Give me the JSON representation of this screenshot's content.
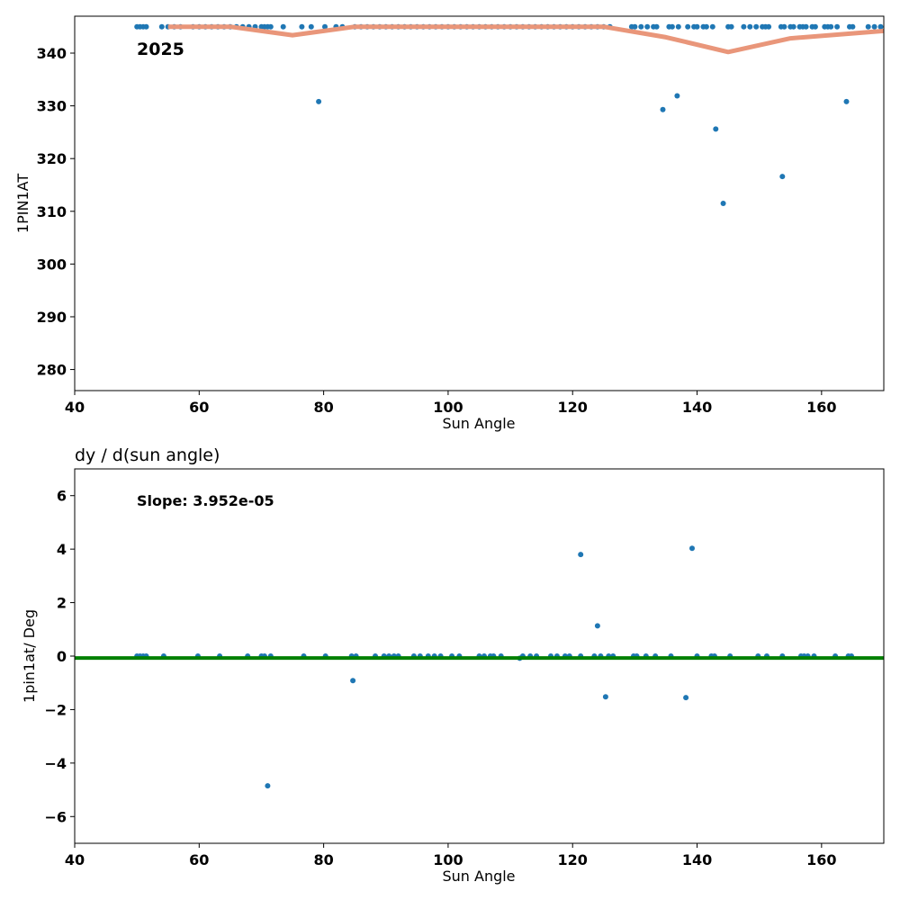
{
  "chart_data": [
    {
      "type": "scatter",
      "title": "",
      "xlabel": "Sun Angle",
      "ylabel": "1PIN1AT",
      "xlim": [
        40,
        170
      ],
      "ylim": [
        276,
        347
      ],
      "xticks": [
        40,
        60,
        80,
        100,
        120,
        140,
        160
      ],
      "yticks": [
        280,
        290,
        300,
        310,
        320,
        330,
        340
      ],
      "annotation": "2025",
      "grid": false,
      "series": [
        {
          "type": "scatter",
          "color": "#1f77b4",
          "points": [
            [
              50,
              345
            ],
            [
              50.5,
              345
            ],
            [
              51,
              345
            ],
            [
              51.5,
              345
            ],
            [
              54,
              345
            ],
            [
              55,
              345
            ],
            [
              56,
              345
            ],
            [
              57,
              345
            ],
            [
              59,
              345
            ],
            [
              60,
              345
            ],
            [
              61,
              345
            ],
            [
              62,
              345
            ],
            [
              63,
              345
            ],
            [
              64,
              345
            ],
            [
              65,
              345
            ],
            [
              66,
              345
            ],
            [
              67,
              345
            ],
            [
              68,
              345
            ],
            [
              69,
              345
            ],
            [
              70,
              345
            ],
            [
              70.5,
              345
            ],
            [
              71,
              345
            ],
            [
              71.5,
              345
            ],
            [
              73.5,
              345
            ],
            [
              76.5,
              345
            ],
            [
              78,
              345
            ],
            [
              79.2,
              330.8
            ],
            [
              80.2,
              345
            ],
            [
              82,
              345
            ],
            [
              83,
              345
            ],
            [
              85,
              345
            ],
            [
              86,
              345
            ],
            [
              87,
              345
            ],
            [
              88,
              345
            ],
            [
              89,
              345
            ],
            [
              90,
              345
            ],
            [
              91,
              345
            ],
            [
              92,
              345
            ],
            [
              93,
              345
            ],
            [
              94,
              345
            ],
            [
              95,
              345
            ],
            [
              96,
              345
            ],
            [
              97,
              345
            ],
            [
              98,
              345
            ],
            [
              99,
              345
            ],
            [
              100,
              345
            ],
            [
              101,
              345
            ],
            [
              102,
              345
            ],
            [
              103,
              345
            ],
            [
              104,
              345
            ],
            [
              105,
              345
            ],
            [
              106,
              345
            ],
            [
              107,
              345
            ],
            [
              108,
              345
            ],
            [
              109,
              345
            ],
            [
              110,
              345
            ],
            [
              111,
              345
            ],
            [
              112,
              345
            ],
            [
              113,
              345
            ],
            [
              114,
              345
            ],
            [
              115,
              345
            ],
            [
              116,
              345
            ],
            [
              117,
              345
            ],
            [
              118,
              345
            ],
            [
              119,
              345
            ],
            [
              120,
              345
            ],
            [
              121,
              345
            ],
            [
              122,
              345
            ],
            [
              123,
              345
            ],
            [
              124,
              345
            ],
            [
              125,
              345
            ],
            [
              126,
              345
            ],
            [
              129.5,
              345
            ],
            [
              130,
              345
            ],
            [
              131,
              345
            ],
            [
              132,
              345
            ],
            [
              133,
              345
            ],
            [
              133.5,
              345
            ],
            [
              134.5,
              329.3
            ],
            [
              135.5,
              345
            ],
            [
              136,
              345
            ],
            [
              136.8,
              331.9
            ],
            [
              137,
              345
            ],
            [
              138.5,
              345
            ],
            [
              139.5,
              345
            ],
            [
              140,
              345
            ],
            [
              141,
              345
            ],
            [
              141.5,
              345
            ],
            [
              142.5,
              345
            ],
            [
              143,
              325.6
            ],
            [
              144.2,
              311.5
            ],
            [
              145,
              345
            ],
            [
              145.5,
              345
            ],
            [
              147.5,
              345
            ],
            [
              148.5,
              345
            ],
            [
              149.5,
              345
            ],
            [
              150.5,
              345
            ],
            [
              151,
              345
            ],
            [
              151.5,
              345
            ],
            [
              153.5,
              345
            ],
            [
              153.7,
              316.6
            ],
            [
              154,
              345
            ],
            [
              155,
              345
            ],
            [
              155.5,
              345
            ],
            [
              156.5,
              345
            ],
            [
              157,
              345
            ],
            [
              157.5,
              345
            ],
            [
              158.5,
              345
            ],
            [
              159,
              345
            ],
            [
              160.5,
              345
            ],
            [
              161,
              345
            ],
            [
              161.5,
              345
            ],
            [
              162.5,
              345
            ],
            [
              164,
              330.8
            ],
            [
              164.5,
              345
            ],
            [
              165,
              345
            ],
            [
              167.5,
              345
            ],
            [
              168.5,
              345
            ],
            [
              169.5,
              345
            ]
          ]
        },
        {
          "type": "line",
          "color": "#e9967a",
          "points": [
            [
              55,
              345
            ],
            [
              65,
              345
            ],
            [
              75,
              343.4
            ],
            [
              85,
              345
            ],
            [
              95,
              345
            ],
            [
              105,
              345
            ],
            [
              115,
              345
            ],
            [
              125,
              345
            ],
            [
              135,
              343
            ],
            [
              145,
              340.2
            ],
            [
              155,
              342.8
            ],
            [
              170,
              344.2
            ]
          ]
        }
      ]
    },
    {
      "type": "scatter",
      "title": "dy / d(sun angle)",
      "xlabel": "Sun Angle",
      "ylabel": "1pin1at/ Deg",
      "xlim": [
        40,
        170
      ],
      "ylim": [
        -7,
        7
      ],
      "xticks": [
        40,
        60,
        80,
        100,
        120,
        140,
        160
      ],
      "yticks": [
        -6,
        -4,
        -2,
        0,
        2,
        4,
        6
      ],
      "annotation": "Slope: 3.952e-05",
      "grid": false,
      "series": [
        {
          "type": "scatter",
          "color": "#1f77b4",
          "points": [
            [
              50,
              0
            ],
            [
              50.5,
              0
            ],
            [
              51,
              0
            ],
            [
              51.5,
              0
            ],
            [
              54.3,
              0
            ],
            [
              59.8,
              0
            ],
            [
              63.3,
              0
            ],
            [
              67.8,
              0
            ],
            [
              70,
              0
            ],
            [
              70.5,
              0
            ],
            [
              71,
              -4.85
            ],
            [
              71.5,
              0
            ],
            [
              76.8,
              0
            ],
            [
              80.3,
              0
            ],
            [
              84.5,
              0
            ],
            [
              84.7,
              -0.92
            ],
            [
              85.2,
              0
            ],
            [
              88.3,
              0
            ],
            [
              89.7,
              0
            ],
            [
              90.5,
              0
            ],
            [
              91.3,
              0
            ],
            [
              92,
              0
            ],
            [
              94.5,
              0
            ],
            [
              95.5,
              0
            ],
            [
              96.8,
              0
            ],
            [
              97.8,
              0
            ],
            [
              98.8,
              0
            ],
            [
              100.6,
              0
            ],
            [
              101.8,
              0
            ],
            [
              105,
              0
            ],
            [
              105.8,
              0
            ],
            [
              106.8,
              0
            ],
            [
              107.3,
              0
            ],
            [
              108.5,
              0
            ],
            [
              111.5,
              -0.08
            ],
            [
              112,
              0
            ],
            [
              113.2,
              0
            ],
            [
              114.2,
              0
            ],
            [
              116.5,
              0
            ],
            [
              117.5,
              0
            ],
            [
              118.8,
              0
            ],
            [
              119.5,
              0
            ],
            [
              121.3,
              0
            ],
            [
              121.3,
              3.8
            ],
            [
              123.5,
              0
            ],
            [
              124,
              1.13
            ],
            [
              124.5,
              0
            ],
            [
              125.3,
              -1.52
            ],
            [
              125.8,
              0
            ],
            [
              126.5,
              0
            ],
            [
              129.8,
              0
            ],
            [
              130.3,
              0
            ],
            [
              131.8,
              0
            ],
            [
              133.3,
              0
            ],
            [
              135.8,
              0
            ],
            [
              138.2,
              -1.55
            ],
            [
              139.2,
              4.03
            ],
            [
              140,
              0
            ],
            [
              142.3,
              0
            ],
            [
              142.8,
              0
            ],
            [
              145.3,
              0
            ],
            [
              149.8,
              0
            ],
            [
              151.2,
              0
            ],
            [
              153.7,
              0
            ],
            [
              156.7,
              0
            ],
            [
              157.2,
              0
            ],
            [
              157.8,
              0
            ],
            [
              158.8,
              0
            ],
            [
              162.2,
              0
            ],
            [
              164.3,
              0
            ],
            [
              164.8,
              0
            ]
          ]
        },
        {
          "type": "line",
          "color": "#008000",
          "points": [
            [
              40,
              -0.07
            ],
            [
              170,
              -0.07
            ]
          ]
        }
      ]
    }
  ]
}
